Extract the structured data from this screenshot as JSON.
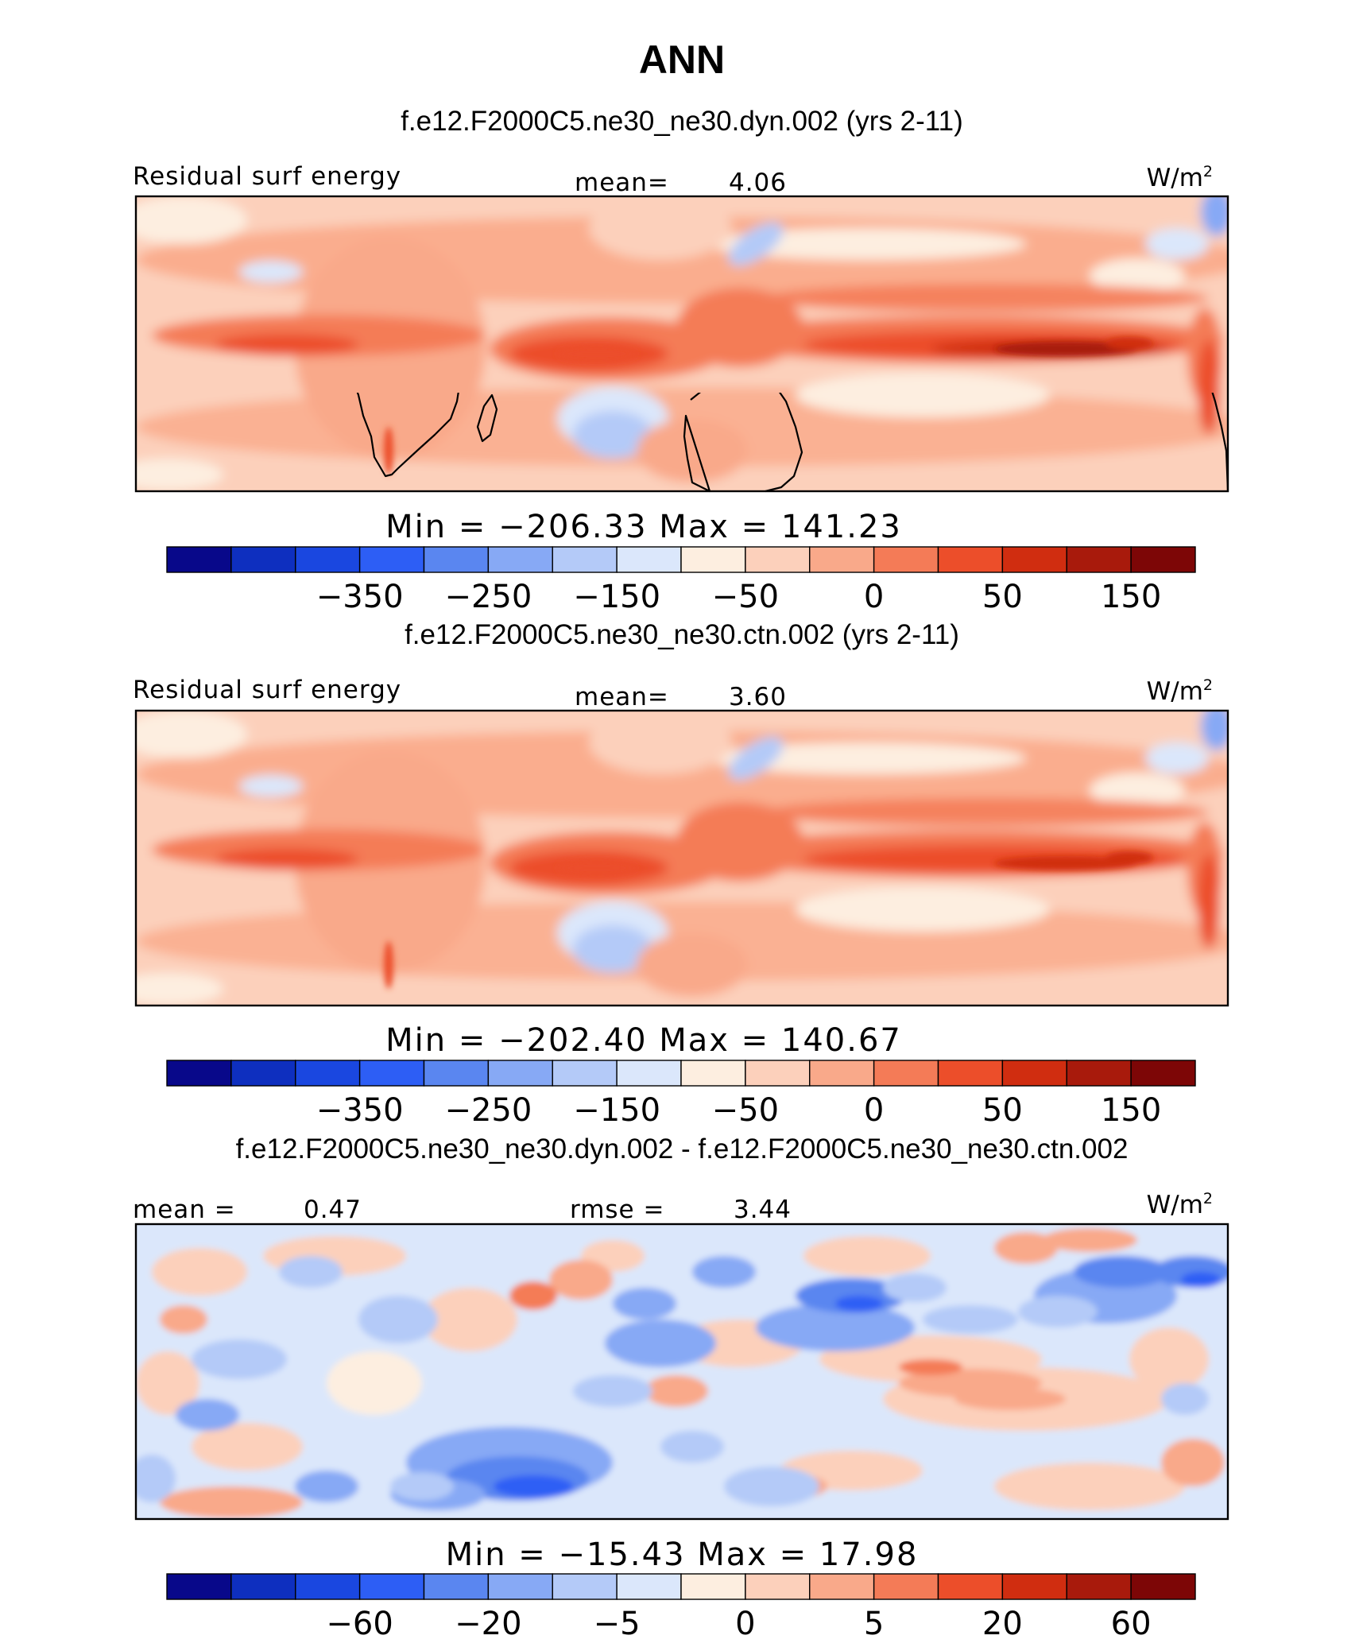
{
  "title": "ANN",
  "units_label": "W/m",
  "units_exp": "2",
  "colors": {
    "palette": [
      "#08088a",
      "#0e2fbf",
      "#1a47e0",
      "#2d5ef5",
      "#5a86f0",
      "#87a9f5",
      "#b4caf8",
      "#dbe7fb",
      "#fdeee0",
      "#fcd0bb",
      "#f9a98a",
      "#f47b57",
      "#ec4e2a",
      "#d02d10",
      "#a81a0c",
      "#7d0606"
    ],
    "coast": "#000000",
    "frame": "#000000"
  },
  "panels": [
    {
      "case": "f.e12.F2000C5.ne30_ne30.dyn.002 (yrs 2-11)",
      "left_label": "Residual surf energy",
      "center_label": "mean=",
      "center_value": "4.06",
      "minmax": "Min = −206.33 Max = 141.23",
      "field": "dyn"
    },
    {
      "case": "f.e12.F2000C5.ne30_ne30.ctn.002 (yrs 2-11)",
      "left_label": "Residual surf energy",
      "center_label": "mean=",
      "center_value": "3.60",
      "minmax": "Min = −202.40 Max = 140.67",
      "field": "ctn"
    },
    {
      "case": "f.e12.F2000C5.ne30_ne30.dyn.002 - f.e12.F2000C5.ne30_ne30.ctn.002",
      "left_label": "mean =",
      "left_value": "0.47",
      "center_label": "rmse =",
      "center_value": "3.44",
      "minmax": "Min = −15.43 Max = 17.98",
      "field": "diff"
    }
  ],
  "chart_data": [
    {
      "type": "heatmap",
      "title": "f.e12.F2000C5.ne30_ne30.dyn.002 (yrs 2-11)",
      "variable": "Residual surf energy",
      "units": "W/m2",
      "mean": 4.06,
      "min": -206.33,
      "max": 141.23,
      "colorbar_ticks": [
        "−350",
        "−250",
        "−150",
        "−50",
        "0",
        "50",
        "150"
      ],
      "colorbar_bins": 16
    },
    {
      "type": "heatmap",
      "title": "f.e12.F2000C5.ne30_ne30.ctn.002 (yrs 2-11)",
      "variable": "Residual surf energy",
      "units": "W/m2",
      "mean": 3.6,
      "min": -202.4,
      "max": 140.67,
      "colorbar_ticks": [
        "−350",
        "−250",
        "−150",
        "−50",
        "0",
        "50",
        "150"
      ],
      "colorbar_bins": 16
    },
    {
      "type": "heatmap",
      "title": "f.e12.F2000C5.ne30_ne30.dyn.002 - f.e12.F2000C5.ne30_ne30.ctn.002",
      "units": "W/m2",
      "mean": 0.47,
      "rmse": 3.44,
      "min": -15.43,
      "max": 17.98,
      "colorbar_ticks": [
        "−60",
        "−20",
        "−5",
        "0",
        "5",
        "20",
        "60"
      ],
      "colorbar_bins": 16
    }
  ]
}
